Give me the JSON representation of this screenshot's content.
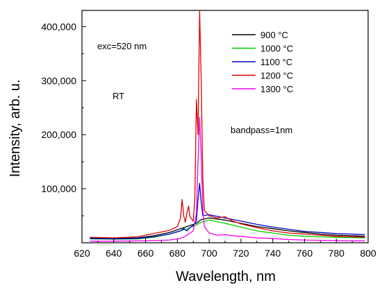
{
  "chart_data": {
    "type": "line",
    "title": "",
    "xlabel": "Wavelength, nm",
    "ylabel": "Intensity, arb. u.",
    "xlim": [
      620,
      800
    ],
    "ylim": [
      0,
      430000
    ],
    "x_ticks": [
      620,
      640,
      660,
      680,
      700,
      720,
      740,
      760,
      780,
      800
    ],
    "y_ticks": [
      {
        "value": 100000,
        "label": "100,000"
      },
      {
        "value": 200000,
        "label": "200,000"
      },
      {
        "value": 300000,
        "label": "300,000"
      },
      {
        "value": 400000,
        "label": "400,000"
      }
    ],
    "grid": false,
    "legend_position": "top-right",
    "annotations": {
      "exc": "exc=520 nm",
      "rt": "RT",
      "bandpass": "bandpass=1nm"
    },
    "series": [
      {
        "name": "900 °C",
        "color": "#000000",
        "points": [
          [
            625,
            9000
          ],
          [
            640,
            8000
          ],
          [
            655,
            9000
          ],
          [
            665,
            13000
          ],
          [
            675,
            19000
          ],
          [
            682,
            26000
          ],
          [
            688,
            32000
          ],
          [
            692,
            36000
          ],
          [
            695,
            43000
          ],
          [
            700,
            46000
          ],
          [
            710,
            42000
          ],
          [
            720,
            36000
          ],
          [
            730,
            30000
          ],
          [
            740,
            26000
          ],
          [
            750,
            22000
          ],
          [
            760,
            19000
          ],
          [
            770,
            16000
          ],
          [
            780,
            14000
          ],
          [
            790,
            13000
          ],
          [
            798,
            12000
          ]
        ]
      },
      {
        "name": "1000 °C",
        "color": "#00cc00",
        "points": [
          [
            625,
            7000
          ],
          [
            640,
            6500
          ],
          [
            655,
            7000
          ],
          [
            665,
            10000
          ],
          [
            675,
            16000
          ],
          [
            682,
            22000
          ],
          [
            688,
            28000
          ],
          [
            692,
            33000
          ],
          [
            695,
            38000
          ],
          [
            700,
            42000
          ],
          [
            710,
            36000
          ],
          [
            720,
            29000
          ],
          [
            730,
            22000
          ],
          [
            740,
            18000
          ],
          [
            750,
            14000
          ],
          [
            760,
            12000
          ],
          [
            770,
            11000
          ],
          [
            780,
            10000
          ],
          [
            790,
            9500
          ],
          [
            798,
            9000
          ]
        ]
      },
      {
        "name": "1100 °C",
        "color": "#0000cc",
        "points": [
          [
            625,
            8000
          ],
          [
            640,
            7000
          ],
          [
            655,
            8000
          ],
          [
            665,
            11000
          ],
          [
            675,
            16000
          ],
          [
            682,
            22000
          ],
          [
            684,
            26000
          ],
          [
            686,
            22000
          ],
          [
            688,
            28000
          ],
          [
            690,
            32000
          ],
          [
            692,
            40000
          ],
          [
            693,
            80000
          ],
          [
            694,
            110000
          ],
          [
            695,
            75000
          ],
          [
            696,
            50000
          ],
          [
            700,
            52000
          ],
          [
            710,
            46000
          ],
          [
            720,
            40000
          ],
          [
            730,
            34000
          ],
          [
            740,
            29000
          ],
          [
            750,
            25000
          ],
          [
            760,
            21000
          ],
          [
            770,
            19000
          ],
          [
            780,
            17000
          ],
          [
            790,
            16000
          ],
          [
            798,
            15000
          ]
        ]
      },
      {
        "name": "1200 °C",
        "color": "#dd0000",
        "points": [
          [
            625,
            10000
          ],
          [
            640,
            9000
          ],
          [
            655,
            11000
          ],
          [
            665,
            17000
          ],
          [
            675,
            23000
          ],
          [
            680,
            30000
          ],
          [
            682,
            45000
          ],
          [
            683,
            80000
          ],
          [
            684,
            50000
          ],
          [
            685,
            38000
          ],
          [
            686,
            55000
          ],
          [
            687,
            68000
          ],
          [
            688,
            48000
          ],
          [
            690,
            40000
          ],
          [
            691,
            80000
          ],
          [
            692,
            265000
          ],
          [
            693,
            200000
          ],
          [
            694,
            430000
          ],
          [
            695,
            300000
          ],
          [
            696,
            120000
          ],
          [
            697,
            60000
          ],
          [
            700,
            50000
          ],
          [
            705,
            46000
          ],
          [
            710,
            48000
          ],
          [
            715,
            40000
          ],
          [
            720,
            35000
          ],
          [
            730,
            28000
          ],
          [
            740,
            22000
          ],
          [
            750,
            18000
          ],
          [
            760,
            16000
          ],
          [
            770,
            14000
          ],
          [
            780,
            12000
          ],
          [
            790,
            11000
          ],
          [
            798,
            10000
          ]
        ]
      },
      {
        "name": "1300 °C",
        "color": "#ee00ee",
        "points": [
          [
            625,
            3000
          ],
          [
            640,
            3000
          ],
          [
            655,
            3500
          ],
          [
            665,
            4000
          ],
          [
            675,
            5000
          ],
          [
            682,
            8000
          ],
          [
            685,
            12000
          ],
          [
            688,
            18000
          ],
          [
            690,
            22000
          ],
          [
            692,
            55000
          ],
          [
            693,
            150000
          ],
          [
            694,
            232000
          ],
          [
            695,
            160000
          ],
          [
            696,
            60000
          ],
          [
            697,
            30000
          ],
          [
            700,
            18000
          ],
          [
            705,
            14000
          ],
          [
            710,
            15000
          ],
          [
            715,
            13000
          ],
          [
            720,
            12000
          ],
          [
            730,
            9000
          ],
          [
            740,
            8000
          ],
          [
            750,
            6000
          ],
          [
            760,
            5000
          ],
          [
            770,
            4500
          ],
          [
            780,
            4000
          ],
          [
            790,
            3500
          ],
          [
            798,
            3500
          ]
        ]
      }
    ]
  }
}
